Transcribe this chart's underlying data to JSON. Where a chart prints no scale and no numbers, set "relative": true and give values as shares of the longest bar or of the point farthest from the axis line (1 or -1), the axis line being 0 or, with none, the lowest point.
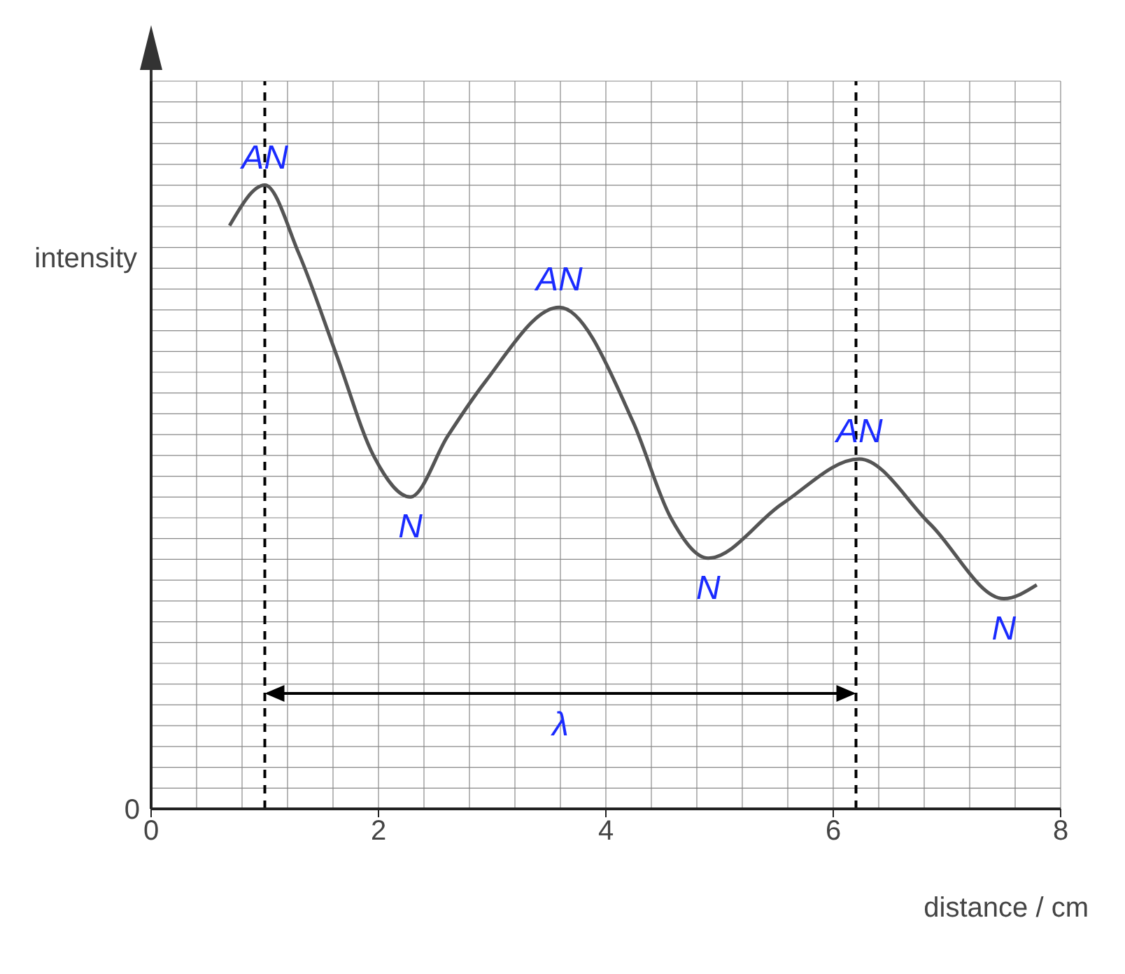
{
  "chart_data": {
    "type": "line",
    "relative": true,
    "xlabel": "distance / cm",
    "ylabel": "intensity",
    "x": [
      0.69,
      1.0,
      1.3,
      1.63,
      1.96,
      2.28,
      2.61,
      2.94,
      3.59,
      4.24,
      4.57,
      4.9,
      5.55,
      6.23,
      6.85,
      7.5,
      7.79
    ],
    "series": [
      {
        "color": "#555555",
        "values": [
          0.935,
          1,
          0.89,
          0.728,
          0.565,
          0.5,
          0.598,
          0.685,
          0.804,
          0.62,
          0.467,
          0.402,
          0.489,
          0.561,
          0.457,
          0.337,
          0.359
        ]
      }
    ],
    "xlim": [
      0,
      8
    ],
    "xticks": [
      0,
      2,
      4,
      6,
      8
    ],
    "grid": true,
    "marker": "none",
    "line_style": "solid",
    "tick_labels": "x",
    "ref_lines": [
      {
        "axis": "x",
        "value": 1.0,
        "label": null,
        "color": "#000000",
        "line_style": "dashed"
      },
      {
        "axis": "x",
        "value": 6.2,
        "label": null,
        "color": "#000000",
        "line_style": "dashed"
      }
    ],
    "annotations": [
      "0",
      {
        "text": "AN",
        "x": 1.0,
        "y": 1
      },
      {
        "text": "N",
        "x": 2.28,
        "y": 0.5
      },
      {
        "text": "AN",
        "x": 3.59,
        "y": 0.804
      },
      {
        "text": "N",
        "x": 4.9,
        "y": 0.402
      },
      {
        "text": "AN",
        "x": 6.23,
        "y": 0.561
      },
      {
        "text": "N",
        "x": 7.5,
        "y": 0.337
      },
      "λ"
    ]
  }
}
